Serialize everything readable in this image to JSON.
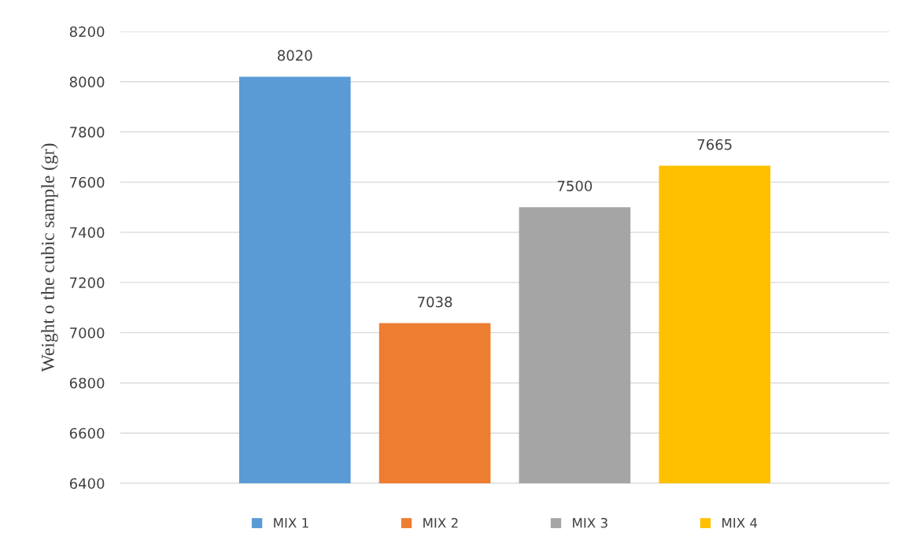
{
  "chart_data": {
    "type": "bar",
    "ylabel": "Weight o the cubic sample (gr)",
    "categories": [
      null
    ],
    "series": [
      {
        "name": "MIX 1",
        "color": "#5b9bd5",
        "values": [
          8020
        ]
      },
      {
        "name": "MIX 2",
        "color": "#ed7d31",
        "values": [
          7038
        ]
      },
      {
        "name": "MIX 3",
        "color": "#a5a5a5",
        "values": [
          7500
        ]
      },
      {
        "name": "MIX 4",
        "color": "#ffc000",
        "values": [
          7665
        ]
      }
    ],
    "ylim": [
      6400,
      8200
    ],
    "yticks": [
      6400,
      6600,
      6800,
      7000,
      7200,
      7400,
      7600,
      7800,
      8000,
      8200
    ],
    "grid": "y",
    "legend": "bottom",
    "data_labels": true
  }
}
